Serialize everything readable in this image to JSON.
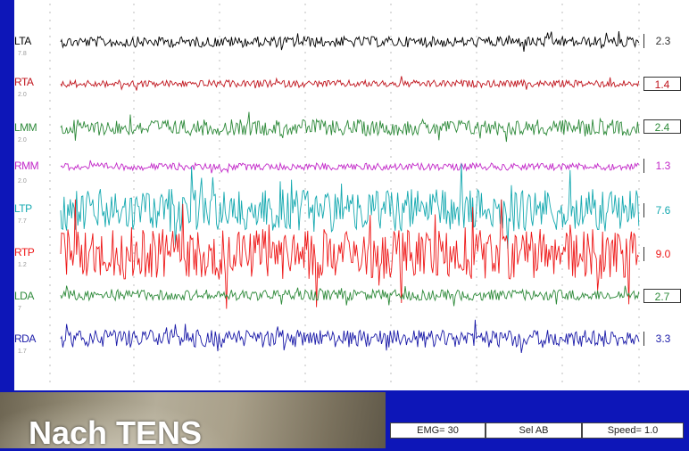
{
  "channels": [
    {
      "name": "LTA",
      "sub": "7.8",
      "value": "2.3",
      "color": "#000000",
      "amp": 6,
      "box": "bar"
    },
    {
      "name": "RTA",
      "sub": "2.0",
      "value": "1.4",
      "color": "#c0141c",
      "amp": 4,
      "box": "boxed"
    },
    {
      "name": "LMM",
      "sub": "2.0",
      "value": "2.4",
      "color": "#2e8a3a",
      "amp": 9,
      "box": "boxed"
    },
    {
      "name": "RMM",
      "sub": "2.0",
      "value": "1.3",
      "color": "#c227c8",
      "amp": 4,
      "box": "bar"
    },
    {
      "name": "LTP",
      "sub": "7.7",
      "value": "7.6",
      "color": "#15a9b0",
      "amp": 24,
      "box": "bar"
    },
    {
      "name": "RTP",
      "sub": "1.2",
      "value": "9.0",
      "color": "#ee1818",
      "amp": 28,
      "box": "bar"
    },
    {
      "name": "LDA",
      "sub": "7",
      "value": "2.7",
      "color": "#2e8a3a",
      "amp": 6,
      "box": "boxed"
    },
    {
      "name": "RDA",
      "sub": "1.7",
      "value": "3.3",
      "color": "#1a1aa8",
      "amp": 10,
      "box": "bar"
    }
  ],
  "status": {
    "emg": "EMG= 30",
    "sel": "Sel AB",
    "speed": "Speed= 1.0"
  },
  "caption": "Nach TENS",
  "colors": {
    "background": "#0d16b8",
    "panel": "#ffffff",
    "grid": "#c8c8c8"
  }
}
